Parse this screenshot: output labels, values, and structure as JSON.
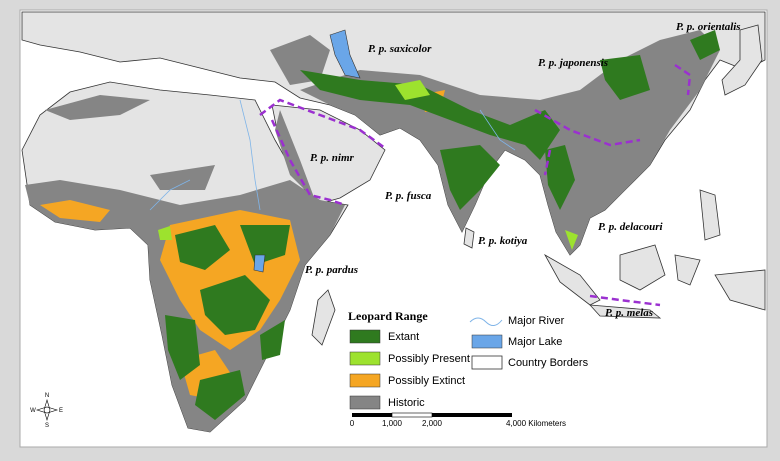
{
  "labels": [
    "P. p. orientalis",
    "P. p. saxicolor",
    "P. p. japonensis",
    "P. p. nimr",
    "P. p. fusca",
    "P. p. kotiya",
    "P. p. delacouri",
    "P. p. pardus",
    "P. p. melas"
  ],
  "legend": {
    "title": "Leopard Range",
    "items": [
      "Extant",
      "Possibly Present",
      "Possibly Extinct",
      "Historic",
      "Major River",
      "Major Lake",
      "Country Borders"
    ]
  },
  "scale": {
    "ticks": [
      "0",
      "1,000",
      "2,000",
      "4,000 Kilometers"
    ]
  },
  "compass": {
    "n": "N",
    "e": "E",
    "s": "S",
    "w": "W"
  }
}
